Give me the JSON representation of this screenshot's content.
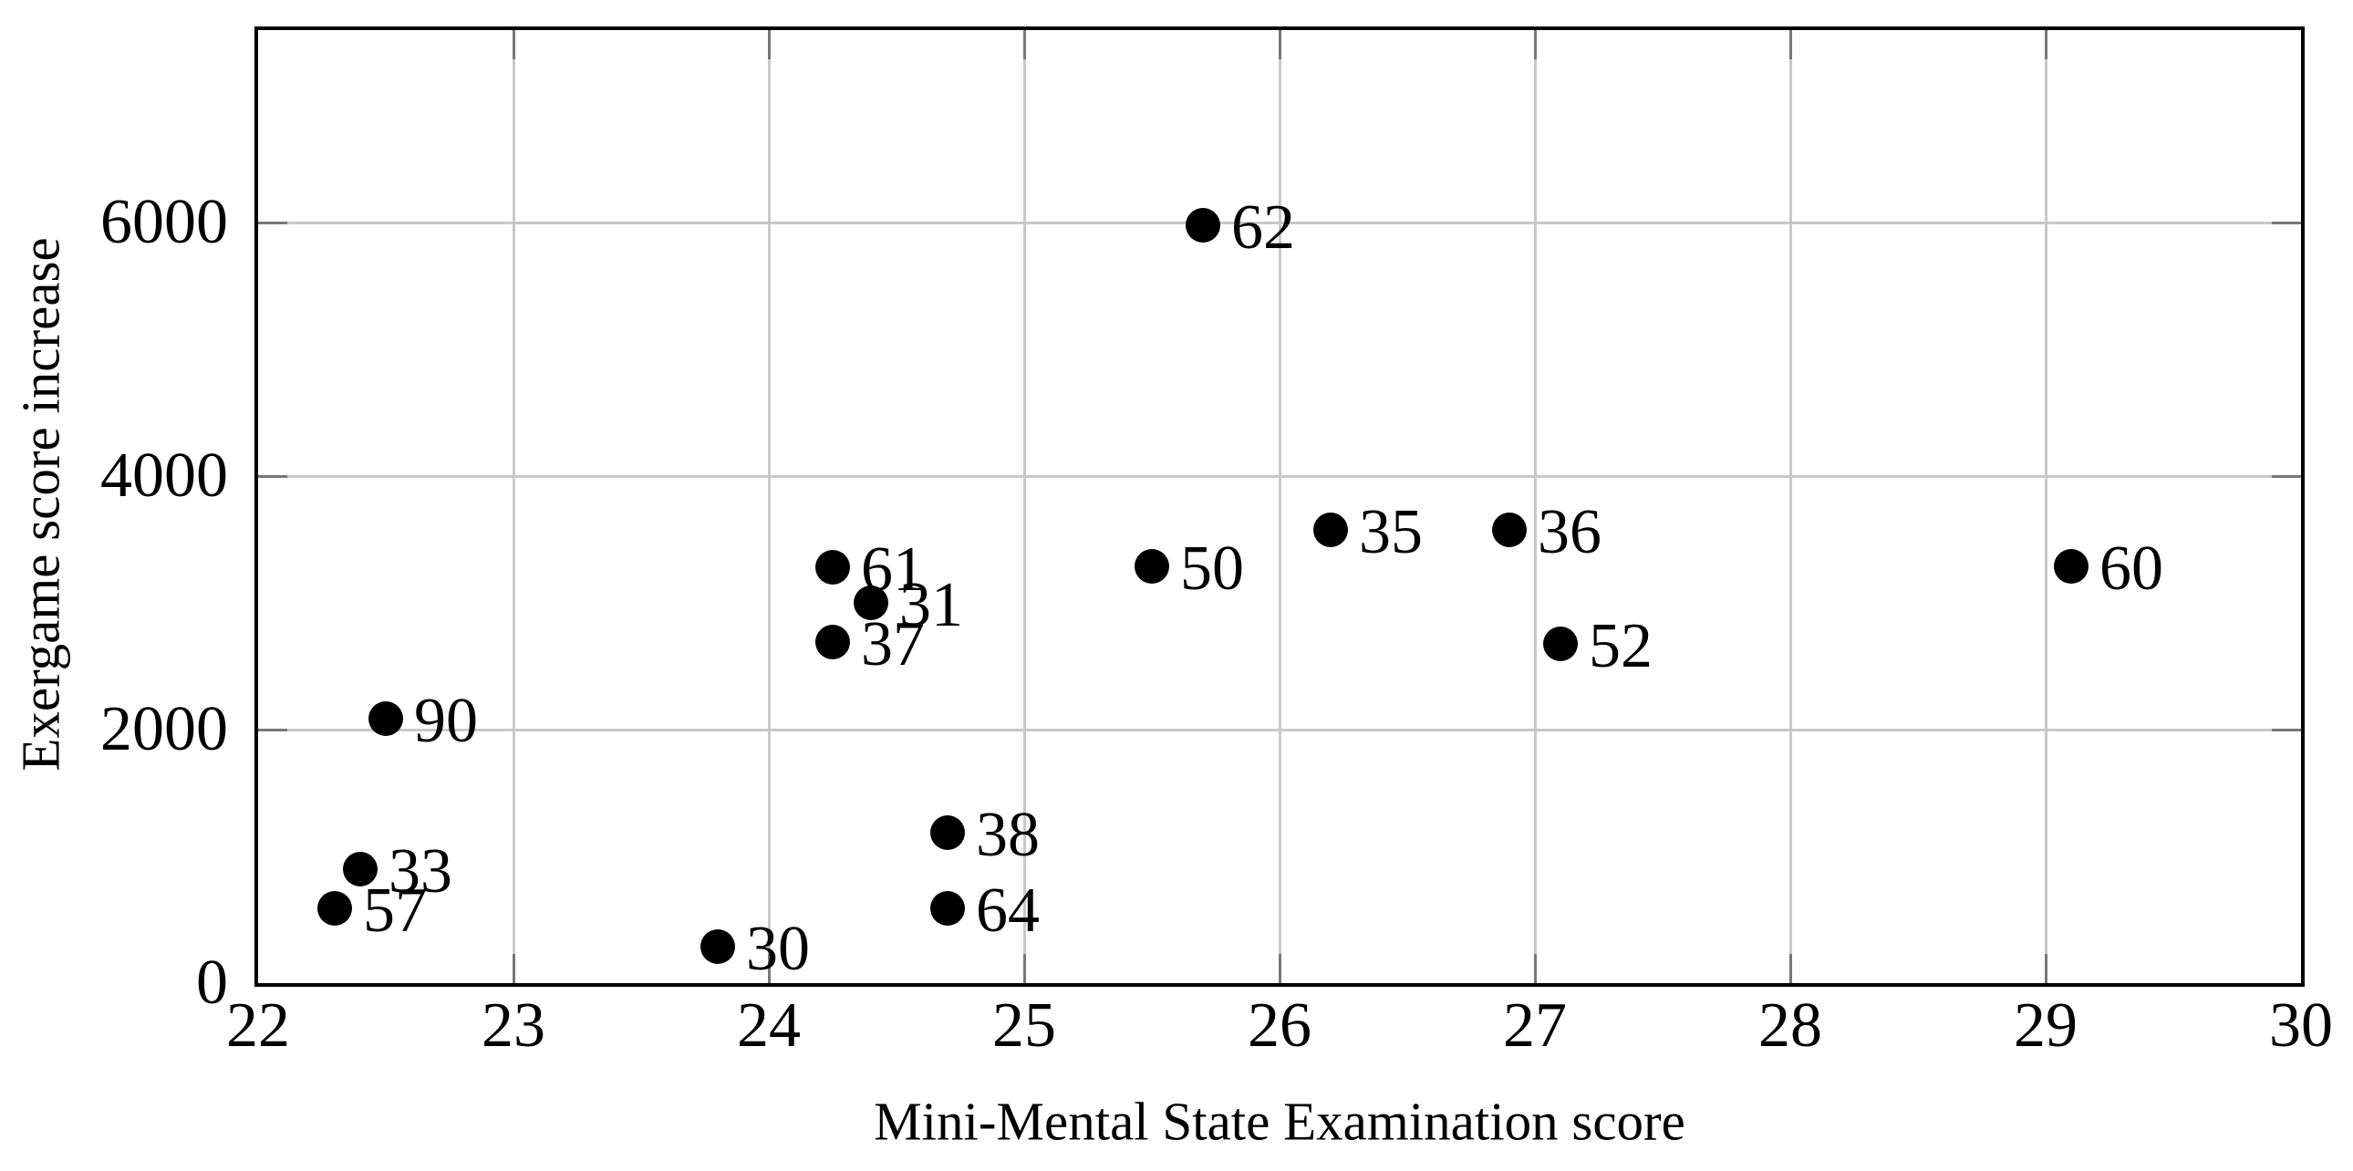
{
  "figure": {
    "background": "#ffffff"
  },
  "chart_data": {
    "type": "scatter",
    "title": "",
    "xlabel": "Mini-Mental State Examination score",
    "ylabel": "Exergame score increase",
    "xlim": [
      22,
      30
    ],
    "ylim": [
      0,
      7520
    ],
    "x_ticks": [
      22,
      23,
      24,
      25,
      26,
      27,
      28,
      29,
      30
    ],
    "y_ticks": [
      0,
      2000,
      4000,
      6000
    ],
    "grid": true,
    "legend": "none",
    "marker": {
      "shape": "filled-circle",
      "color": "#000000",
      "radius_px": 19
    },
    "colors": {
      "grid": "#c8c8c8",
      "tick": "#777777",
      "frame": "#000000",
      "text": "#000000"
    },
    "points": [
      {
        "label": "57",
        "x": 22.3,
        "y": 590
      },
      {
        "label": "33",
        "x": 22.4,
        "y": 900
      },
      {
        "label": "90",
        "x": 22.5,
        "y": 2090
      },
      {
        "label": "30",
        "x": 23.8,
        "y": 290
      },
      {
        "label": "37",
        "x": 24.25,
        "y": 2690
      },
      {
        "label": "61",
        "x": 24.25,
        "y": 3280
      },
      {
        "label": "31",
        "x": 24.4,
        "y": 3000
      },
      {
        "label": "64",
        "x": 24.7,
        "y": 590
      },
      {
        "label": "38",
        "x": 24.7,
        "y": 1190
      },
      {
        "label": "50",
        "x": 25.5,
        "y": 3290
      },
      {
        "label": "62",
        "x": 25.7,
        "y": 5980
      },
      {
        "label": "35",
        "x": 26.2,
        "y": 3580
      },
      {
        "label": "36",
        "x": 26.9,
        "y": 3580
      },
      {
        "label": "52",
        "x": 27.1,
        "y": 2680
      },
      {
        "label": "60",
        "x": 29.1,
        "y": 3290
      }
    ]
  }
}
